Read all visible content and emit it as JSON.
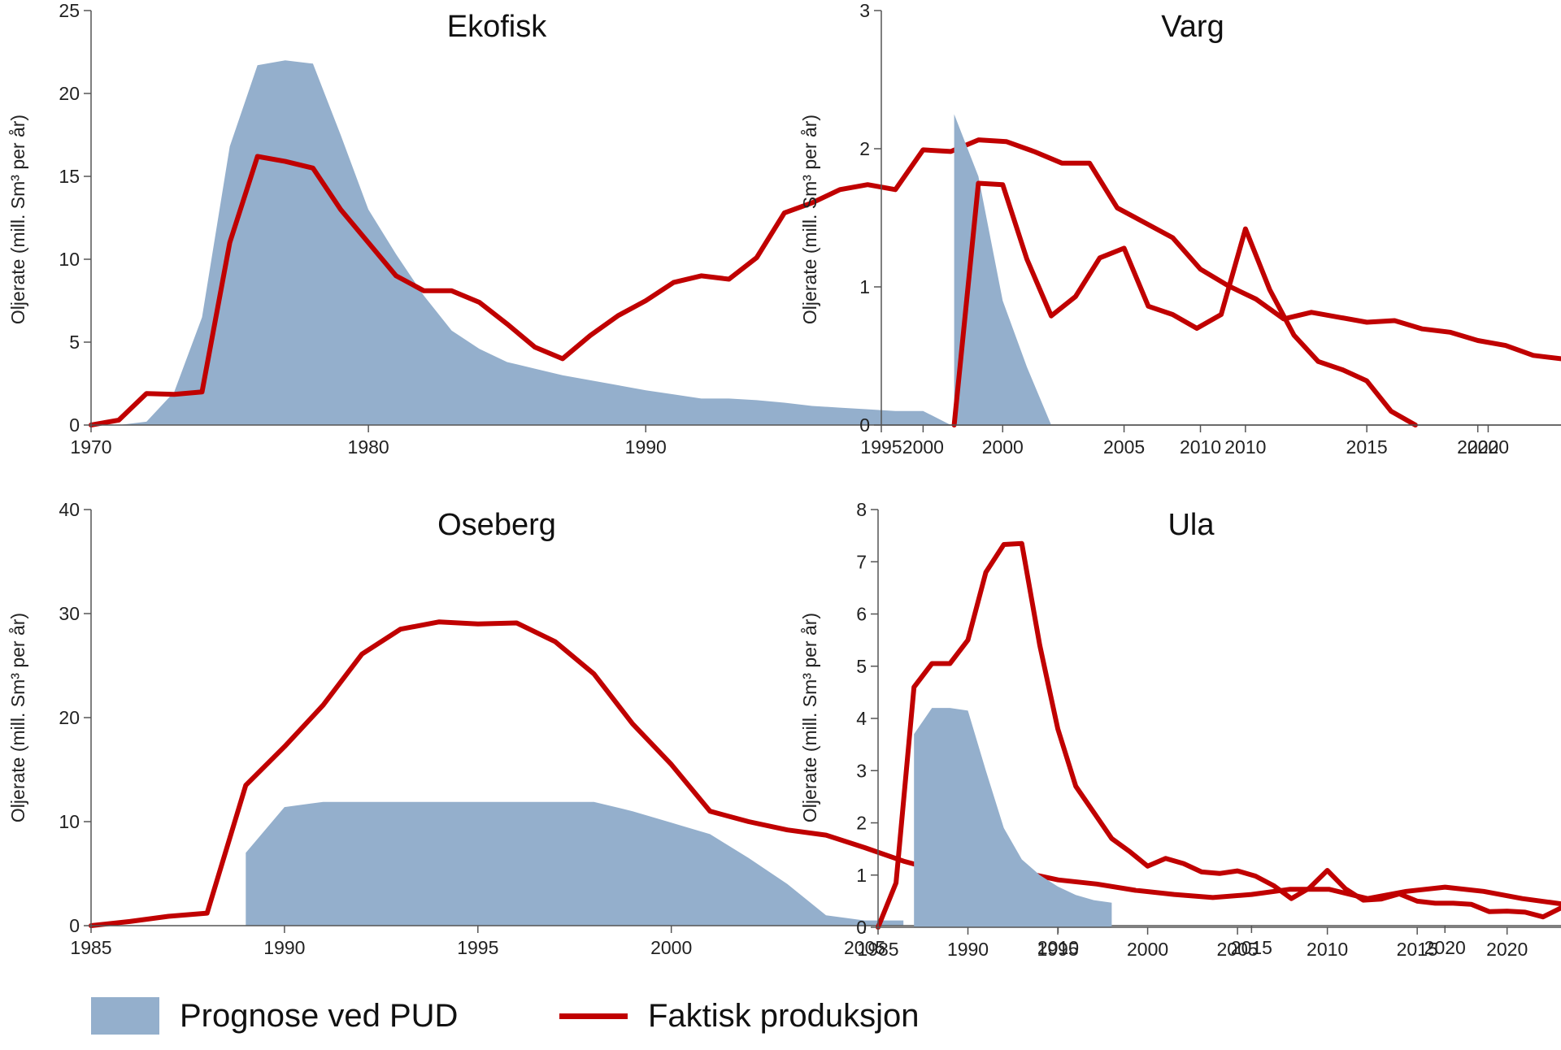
{
  "legend": {
    "forecast": "Prognose ved PUD",
    "actual": "Faktisk produksjon"
  },
  "colors": {
    "forecast": "#94afcc",
    "actual": "#c00000",
    "axis": "#555555"
  },
  "chart_data": [
    {
      "type": "area+line",
      "title": "Ekofisk",
      "ylabel": "Oljerate (mill. Sm³ per år)",
      "xlim": [
        1970,
        2023
      ],
      "ylim": [
        0,
        25
      ],
      "xticks": [
        1970,
        1980,
        1990,
        2000,
        2010,
        2020
      ],
      "yticks": [
        0,
        5,
        10,
        15,
        20,
        25
      ],
      "series": [
        {
          "name": "Prognose ved PUD",
          "kind": "area",
          "x": [
            1970,
            1971,
            1972,
            1973,
            1974,
            1975,
            1976,
            1977,
            1978,
            1979,
            1980,
            1981,
            1982,
            1983,
            1984,
            1985,
            1986,
            1987,
            1988,
            1989,
            1990,
            1991,
            1992,
            1993,
            1994,
            1995,
            1996,
            1997,
            1998,
            1999,
            2000,
            2001
          ],
          "y": [
            0,
            0,
            0.2,
            2,
            6.5,
            16.8,
            21.7,
            22,
            21.8,
            17.5,
            13,
            10.3,
            7.8,
            5.7,
            4.6,
            3.8,
            3.4,
            3,
            2.7,
            2.4,
            2.1,
            1.85,
            1.6,
            1.6,
            1.5,
            1.35,
            1.15,
            1.05,
            0.95,
            0.85,
            0.85,
            0
          ]
        },
        {
          "name": "Faktisk produksjon",
          "kind": "line",
          "x": [
            1970,
            1971,
            1972,
            1973,
            1974,
            1975,
            1976,
            1977,
            1978,
            1979,
            1980,
            1981,
            1982,
            1983,
            1984,
            1985,
            1986,
            1987,
            1988,
            1989,
            1990,
            1991,
            1992,
            1993,
            1994,
            1995,
            1996,
            1997,
            1998,
            1999,
            2000,
            2001,
            2002,
            2003,
            2004,
            2005,
            2006,
            2007,
            2008,
            2009,
            2010,
            2011,
            2012,
            2013,
            2014,
            2015,
            2016,
            2017,
            2018,
            2019,
            2020,
            2021,
            2022,
            2023
          ],
          "y": [
            0,
            0.3,
            1.9,
            1.85,
            2,
            11,
            16.2,
            15.9,
            15.5,
            13,
            11,
            9,
            8.1,
            8.1,
            7.4,
            6.1,
            4.7,
            4,
            5.4,
            6.6,
            7.5,
            8.6,
            9,
            8.8,
            10.1,
            12.8,
            13.4,
            14.2,
            14.5,
            14.2,
            16.6,
            16.5,
            17.2,
            17.1,
            16.5,
            15.8,
            15.8,
            13.1,
            12.2,
            11.3,
            9.4,
            8.4,
            7.6,
            6.4,
            6.8,
            6.5,
            6.2,
            6.3,
            5.8,
            5.6,
            5.1,
            4.8,
            4.2,
            4
          ]
        }
      ]
    },
    {
      "type": "area+line",
      "title": "Varg",
      "ylabel": "Oljerate (mill. Sm³ per år)",
      "xlim": [
        1995,
        2023
      ],
      "ylim": [
        0,
        3
      ],
      "xticks": [
        1995,
        2000,
        2005,
        2010,
        2015,
        2020
      ],
      "yticks": [
        0,
        1,
        2,
        3
      ],
      "series": [
        {
          "name": "Prognose ved PUD",
          "kind": "area",
          "x": [
            1998,
            1999,
            2000,
            2001,
            2002
          ],
          "y": [
            2.25,
            1.8,
            0.9,
            0.42,
            0
          ]
        },
        {
          "name": "Faktisk produksjon",
          "kind": "line",
          "x": [
            1998,
            1999,
            2000,
            2001,
            2002,
            2003,
            2004,
            2005,
            2006,
            2007,
            2008,
            2009,
            2010,
            2011,
            2012,
            2013,
            2014,
            2015,
            2016,
            2017
          ],
          "y": [
            0,
            1.75,
            1.74,
            1.2,
            0.79,
            0.93,
            1.21,
            1.28,
            0.86,
            0.8,
            0.7,
            0.8,
            1.42,
            0.98,
            0.65,
            0.46,
            0.4,
            0.32,
            0.1,
            0
          ]
        }
      ]
    },
    {
      "type": "area+line",
      "title": "Oseberg",
      "ylabel": "Oljerate (mill. Sm³ per år)",
      "xlim": [
        1985,
        2023
      ],
      "ylim": [
        0,
        40
      ],
      "xticks": [
        1985,
        1990,
        1995,
        2000,
        2005,
        2010,
        2015,
        2020
      ],
      "yticks": [
        0,
        10,
        20,
        30,
        40
      ],
      "series": [
        {
          "name": "Prognose ved PUD",
          "kind": "area",
          "x": [
            1989,
            1990,
            1991,
            1992,
            1993,
            1994,
            1995,
            1996,
            1997,
            1998,
            1999,
            2000,
            2001,
            2002,
            2003,
            2004,
            2005,
            2006
          ],
          "y": [
            7,
            11.4,
            11.9,
            11.9,
            11.9,
            11.9,
            11.9,
            11.9,
            11.9,
            11.9,
            11,
            9.9,
            8.8,
            6.5,
            4,
            1,
            0.5,
            0.5
          ]
        },
        {
          "name": "Faktisk produksjon",
          "kind": "line",
          "x": [
            1985,
            1986,
            1987,
            1988,
            1989,
            1990,
            1991,
            1992,
            1993,
            1994,
            1995,
            1996,
            1997,
            1998,
            1999,
            2000,
            2001,
            2002,
            2003,
            2004,
            2005,
            2006,
            2007,
            2008,
            2009,
            2010,
            2011,
            2012,
            2013,
            2014,
            2015,
            2016,
            2017,
            2018,
            2019,
            2020,
            2021,
            2022,
            2023
          ],
          "y": [
            0,
            0.4,
            0.9,
            1.2,
            13.5,
            17.2,
            21.2,
            26.1,
            28.5,
            29.2,
            29,
            29.1,
            27.3,
            24.2,
            19.4,
            15.5,
            11,
            10,
            9.2,
            8.7,
            7.5,
            6.2,
            5.2,
            5.3,
            5.2,
            4.4,
            4,
            3.4,
            3,
            2.7,
            3,
            3.5,
            3.5,
            2.6,
            3.3,
            3.7,
            3.3,
            2.6,
            2.1
          ]
        }
      ]
    },
    {
      "type": "area+line",
      "title": "Ula",
      "ylabel": "Oljerate (mill. Sm³ per år)",
      "xlim": [
        1985,
        2023
      ],
      "ylim": [
        0,
        8
      ],
      "xticks": [
        1985,
        1990,
        1995,
        2000,
        2005,
        2010,
        2015,
        2020
      ],
      "yticks": [
        0,
        1,
        2,
        3,
        4,
        5,
        6,
        7,
        8
      ],
      "series": [
        {
          "name": "Prognose ved PUD",
          "kind": "area",
          "x": [
            1987,
            1988,
            1989,
            1990,
            1991,
            1992,
            1993,
            1994,
            1995,
            1996,
            1997,
            1998
          ],
          "y": [
            3.7,
            4.2,
            4.2,
            4.15,
            3,
            1.9,
            1.3,
            1,
            0.78,
            0.62,
            0.52,
            0.47
          ]
        },
        {
          "name": "Faktisk produksjon",
          "kind": "line",
          "x": [
            1985,
            1986,
            1987,
            1988,
            1989,
            1990,
            1991,
            1992,
            1993,
            1994,
            1995,
            1996,
            1997,
            1998,
            1999,
            2000,
            2001,
            2002,
            2003,
            2004,
            2005,
            2006,
            2007,
            2008,
            2009,
            2010,
            2011,
            2012,
            2013,
            2014,
            2015,
            2016,
            2017,
            2018,
            2019,
            2020,
            2021,
            2022,
            2023
          ],
          "y": [
            0,
            0.85,
            4.6,
            5.05,
            5.05,
            5.5,
            6.8,
            7.33,
            7.35,
            5.4,
            3.8,
            2.7,
            2.2,
            1.7,
            1.45,
            1.17,
            1.32,
            1.22,
            1.06,
            1.03,
            1.08,
            0.98,
            0.8,
            0.55,
            0.75,
            1.09,
            0.74,
            0.52,
            0.54,
            0.64,
            0.5,
            0.46,
            0.46,
            0.44,
            0.3,
            0.31,
            0.29,
            0.2,
            0.37
          ]
        }
      ]
    }
  ]
}
